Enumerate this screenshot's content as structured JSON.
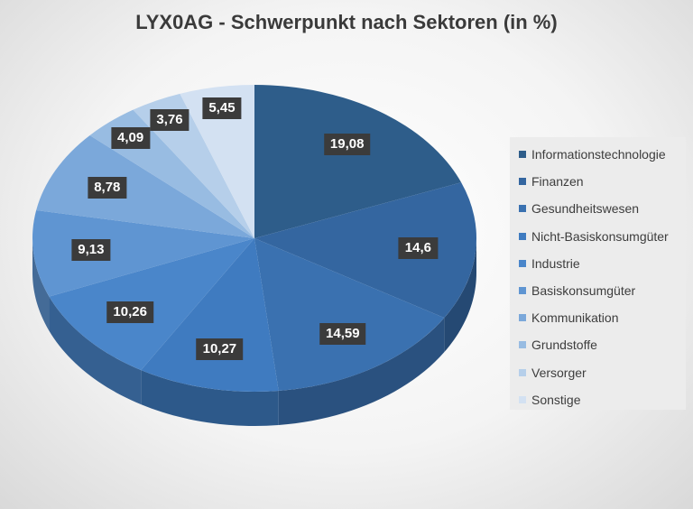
{
  "chart_data": {
    "type": "pie",
    "title": "LYX0AG - Schwerpunkt nach Sektoren (in %)",
    "labels": [
      "Informationstechnologie",
      "Finanzen",
      "Gesundheitswesen",
      "Nicht-Basiskonsumgüter",
      "Industrie",
      "Basiskonsumgüter",
      "Kommunikation",
      "Grundstoffe",
      "Versorger",
      "Sonstige"
    ],
    "values": [
      19.08,
      14.6,
      14.59,
      10.27,
      10.26,
      9.13,
      8.78,
      4.09,
      3.76,
      5.45
    ],
    "value_labels": [
      "19,08",
      "14,6",
      "14,59",
      "10,27",
      "10,26",
      "9,13",
      "8,78",
      "4,09",
      "3,76",
      "5,45"
    ],
    "colors": [
      "#2e5d8a",
      "#3466a0",
      "#3a71b0",
      "#3f7bc0",
      "#4a86ca",
      "#5f95d2",
      "#7ba8da",
      "#98bce2",
      "#b6cfea",
      "#d3e1f2"
    ],
    "legend_position": "right",
    "start": "top, clockwise"
  }
}
